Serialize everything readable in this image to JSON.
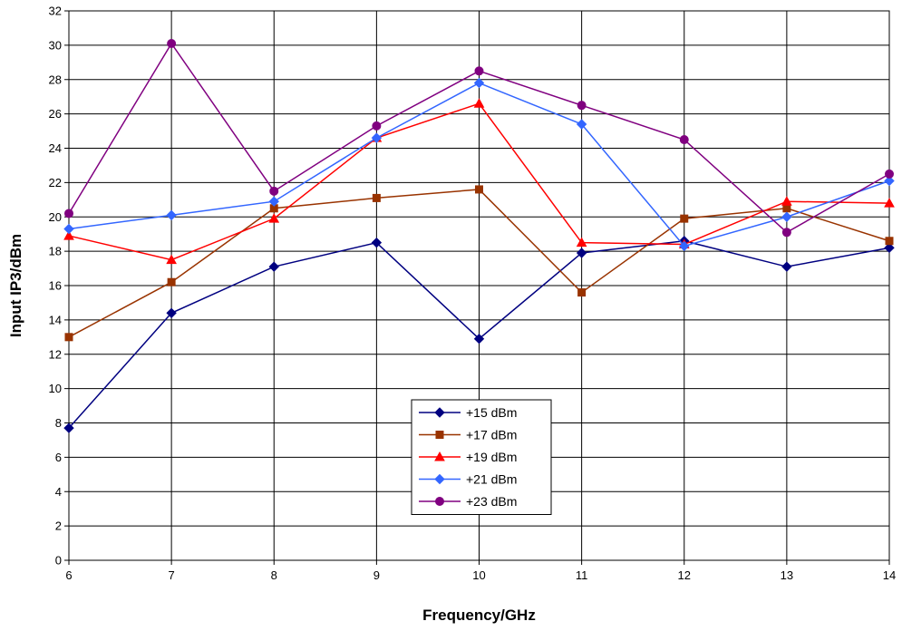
{
  "chart_data": {
    "type": "line",
    "xlabel": "Frequency/GHz",
    "ylabel": "Input IP3/dBm",
    "x": [
      6,
      7,
      8,
      9,
      10,
      11,
      12,
      13,
      14
    ],
    "xlim": [
      6,
      14
    ],
    "ylim": [
      0,
      32
    ],
    "xticks": [
      "6",
      "7",
      "8",
      "9",
      "10",
      "11",
      "12",
      "13",
      "14"
    ],
    "yticks": [
      "0",
      "2",
      "4",
      "6",
      "8",
      "10",
      "12",
      "14",
      "16",
      "18",
      "20",
      "22",
      "24",
      "26",
      "28",
      "30",
      "32"
    ],
    "grid": true,
    "legend_position": "bottom-center",
    "series": [
      {
        "name": "+15 dBm",
        "color": "#000080",
        "marker": "diamond",
        "values": [
          7.7,
          14.4,
          17.1,
          18.5,
          12.9,
          17.9,
          18.6,
          17.1,
          18.2
        ]
      },
      {
        "name": "+17 dBm",
        "color": "#993300",
        "marker": "square",
        "values": [
          13.0,
          16.2,
          20.5,
          21.1,
          21.6,
          15.6,
          19.9,
          20.5,
          18.6
        ]
      },
      {
        "name": "+19 dBm",
        "color": "#FF0000",
        "marker": "triangle",
        "values": [
          18.9,
          17.5,
          19.9,
          24.6,
          26.6,
          18.5,
          18.4,
          20.9,
          20.8
        ]
      },
      {
        "name": "+21 dBm",
        "color": "#3366FF",
        "marker": "diamond",
        "values": [
          19.3,
          20.1,
          20.9,
          24.6,
          27.8,
          25.4,
          18.3,
          20.0,
          22.1
        ]
      },
      {
        "name": "+23 dBm",
        "color": "#800080",
        "marker": "circle",
        "values": [
          20.2,
          30.1,
          21.5,
          25.3,
          28.5,
          26.5,
          24.5,
          19.1,
          22.5
        ]
      }
    ]
  }
}
